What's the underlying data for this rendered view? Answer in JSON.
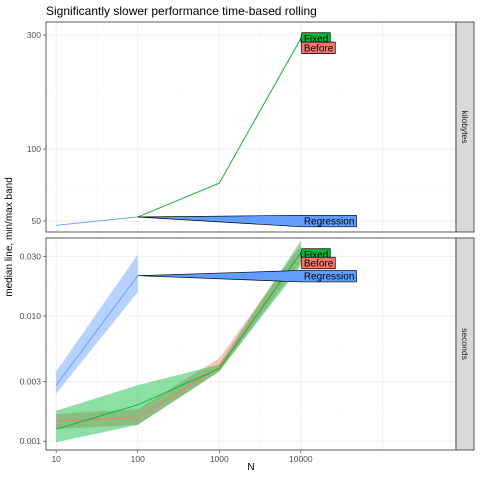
{
  "chart_data": {
    "type": "line",
    "title": "Significantly slower performance time-based rolling",
    "xlabel": "N",
    "ylabel": "median line, min/max band",
    "x_scale": "log",
    "x_ticks": [
      10,
      100,
      1000,
      10000
    ],
    "x_tick_labels": [
      "10",
      "100",
      "1000",
      "10000"
    ],
    "xlim": [
      7.5,
      800000
    ],
    "grid": true,
    "panels": [
      {
        "strip_label": "kilobytes",
        "y_scale": "log",
        "ylim": [
          45,
          340
        ],
        "y_ticks": [
          50,
          100,
          300
        ],
        "y_tick_labels": [
          "50",
          "100",
          "300"
        ],
        "series": [
          {
            "name": "Regression",
            "color": "#619CFF",
            "x": [
              10,
              100
            ],
            "median": [
              48,
              52
            ],
            "min": [
              48,
              52
            ],
            "max": [
              48,
              52
            ]
          },
          {
            "name": "Before",
            "color": "#F8766D",
            "x": [
              100,
              1000,
              10000
            ],
            "median": [
              52,
              72,
              290
            ],
            "min": [
              52,
              72,
              290
            ],
            "max": [
              52,
              72,
              290
            ]
          },
          {
            "name": "Fixed",
            "color": "#00BA38",
            "x": [
              100,
              1000,
              10000
            ],
            "median": [
              52,
              72,
              290
            ],
            "min": [
              52,
              72,
              290
            ],
            "max": [
              52,
              72,
              290
            ]
          }
        ],
        "labels": [
          {
            "text": "Fixed",
            "series": "Fixed",
            "x": 10000,
            "y": 290
          },
          {
            "text": "Before",
            "series": "Before",
            "x": 10000,
            "y": 265
          },
          {
            "text": "Regression",
            "series": "Regression",
            "x": 10000,
            "y": 50
          }
        ]
      },
      {
        "strip_label": "seconds",
        "y_scale": "log",
        "ylim": [
          0.00085,
          0.042
        ],
        "y_ticks": [
          0.001,
          0.003,
          0.01,
          0.03
        ],
        "y_tick_labels": [
          "0.001",
          "0.003",
          "0.010",
          "0.030"
        ],
        "series": [
          {
            "name": "Regression",
            "color": "#619CFF",
            "x": [
              10,
              100
            ],
            "median": [
              0.0028,
              0.021
            ],
            "min": [
              0.0024,
              0.0155
            ],
            "max": [
              0.0036,
              0.031
            ]
          },
          {
            "name": "Before",
            "color": "#F8766D",
            "x": [
              10,
              100,
              1000,
              10000
            ],
            "median": [
              0.00145,
              0.00155,
              0.0039,
              0.032
            ],
            "min": [
              0.00125,
              0.00135,
              0.0036,
              0.027
            ],
            "max": [
              0.00165,
              0.0018,
              0.0046,
              0.037
            ]
          },
          {
            "name": "Fixed",
            "color": "#00BA38",
            "x": [
              10,
              100,
              1000,
              10000
            ],
            "median": [
              0.00125,
              0.00195,
              0.0038,
              0.032
            ],
            "min": [
              0.00098,
              0.00135,
              0.0036,
              0.025
            ],
            "max": [
              0.00175,
              0.0028,
              0.0041,
              0.04
            ]
          }
        ],
        "labels": [
          {
            "text": "Fixed",
            "series": "Fixed",
            "x": 10000,
            "y": 0.031
          },
          {
            "text": "Before",
            "series": "Before",
            "x": 10000,
            "y": 0.0265
          },
          {
            "text": "Regression",
            "series": "Regression",
            "x": 10000,
            "y": 0.0208
          }
        ]
      }
    ]
  }
}
